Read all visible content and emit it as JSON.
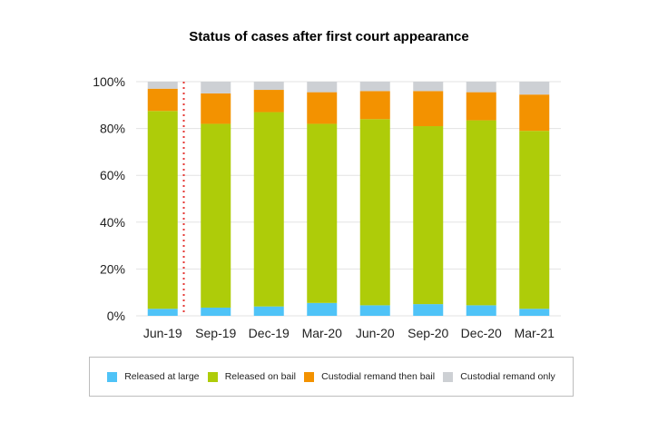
{
  "chart_data": {
    "type": "bar",
    "stacked": true,
    "title": "Status of cases after first court appearance",
    "xlabel": "",
    "ylabel": "",
    "ylim": [
      0,
      100
    ],
    "y_ticks": [
      "0%",
      "20%",
      "40%",
      "60%",
      "80%",
      "100%"
    ],
    "y_tick_values": [
      0,
      20,
      40,
      60,
      80,
      100
    ],
    "grid": true,
    "legend_position": "bottom",
    "categories": [
      "Jun-19",
      "Sep-19",
      "Dec-19",
      "Mar-20",
      "Jun-20",
      "Sep-20",
      "Dec-20",
      "Mar-21"
    ],
    "series": [
      {
        "name": "Released at large",
        "color": "#4fc3f7",
        "values": [
          3,
          3.5,
          4,
          5.5,
          4.5,
          5,
          4.5,
          3
        ]
      },
      {
        "name": "Released on bail",
        "color": "#aecc09",
        "values": [
          84.5,
          78.5,
          83,
          76.5,
          79.5,
          76,
          79,
          76
        ]
      },
      {
        "name": "Custodial remand then bail",
        "color": "#f39200",
        "values": [
          9.5,
          13,
          9.5,
          13.5,
          12,
          15,
          12,
          15.5
        ]
      },
      {
        "name": "Custodial remand only",
        "color": "#cdd0d4",
        "values": [
          3,
          5,
          3.5,
          4.5,
          4,
          4,
          4.5,
          5.5
        ]
      }
    ],
    "annotations": [
      {
        "type": "vertical-dotted-line",
        "between": [
          "Jun-19",
          "Sep-19"
        ],
        "color": "#e53935"
      }
    ]
  }
}
